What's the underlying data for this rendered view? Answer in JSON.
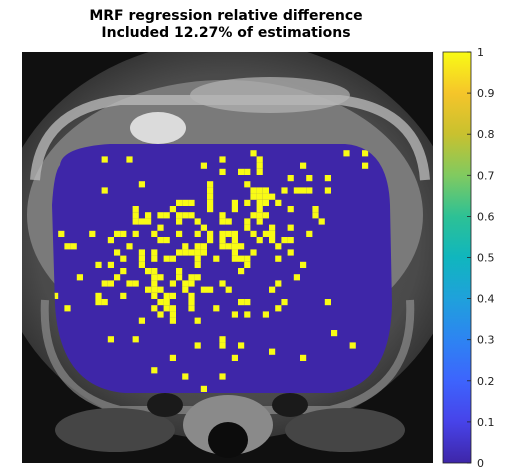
{
  "chart_data": {
    "type": "heatmap",
    "title": "MRF regression relative difference",
    "subtitle": "Included 12.27% of estimations",
    "background": "grayscale MRI slice of abdomen",
    "mask_fill_value": 0,
    "highlight_value": 1,
    "colorbar": {
      "colormap": "parula",
      "range": [
        0,
        1
      ],
      "ticks": [
        "0",
        "0.1",
        "0.2",
        "0.3",
        "0.4",
        "0.5",
        "0.6",
        "0.7",
        "0.8",
        "0.9",
        "1"
      ],
      "colors": [
        "#3e26a8",
        "#4743e9",
        "#3d64fd",
        "#2d84f2",
        "#1fa1db",
        "#10b6be",
        "#2dc195",
        "#80ca60",
        "#c8c12f",
        "#f5c52a",
        "#f9fb15"
      ]
    }
  }
}
